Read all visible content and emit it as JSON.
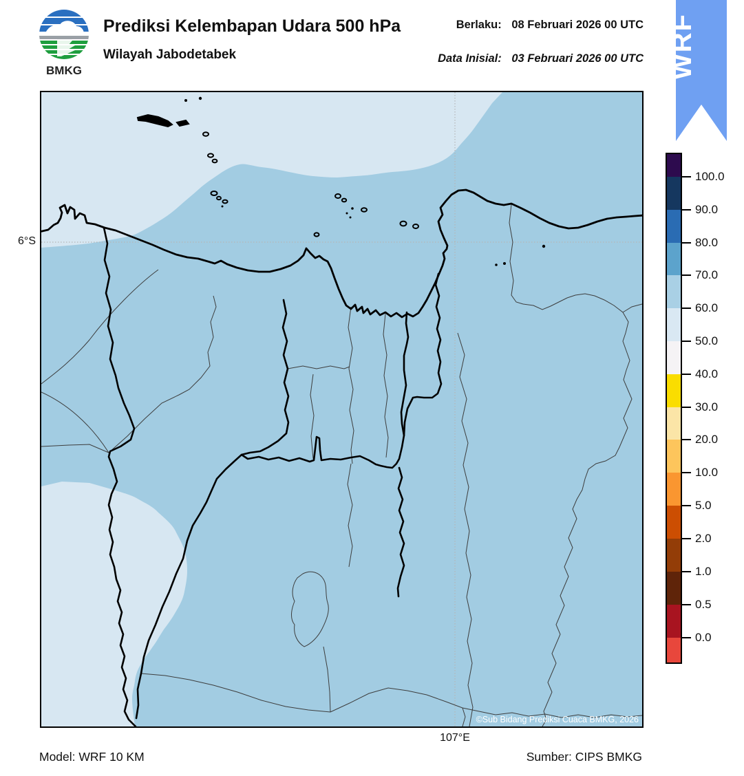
{
  "header": {
    "logo_text": "BMKG",
    "title": "Prediksi Kelembapan Udara 500 hPa",
    "subtitle": "Wilayah Jabodetabek",
    "valid_label": "Berlaku:",
    "valid_value": "08 Februari 2026 00 UTC",
    "initial_label": "Data Inisial:",
    "initial_value": "03 Februari 2026 00 UTC",
    "ribbon": {
      "label": "WRF",
      "color": "#6FA0F2"
    }
  },
  "map": {
    "lat_tick": "6°S",
    "lon_tick": "107°E",
    "copyright": "©Sub Bidang Prediksi Cuaca BMKG, 2026",
    "colors": {
      "humidity_60_70_fill": "#A2CCE2",
      "humidity_50_60_fill": "#D7E7F2",
      "coastline": "#000000",
      "district_border": "#3d3d3d",
      "gridline": "#b5b5b5"
    }
  },
  "colorbar": {
    "tick_labels": [
      "100.0",
      "90.0",
      "80.0",
      "70.0",
      "60.0",
      "50.0",
      "40.0",
      "30.0",
      "20.0",
      "10.0",
      "5.0",
      "2.0",
      "1.0",
      "0.5",
      "0.0"
    ],
    "segment_colors_top_to_bottom": [
      "#2D0B4E",
      "#15375F",
      "#2A6CB3",
      "#5CA3CC",
      "#A9D0E5",
      "#D9E8F3",
      "#F5F3F5",
      "#FADD00",
      "#FBE5A7",
      "#FDC55C",
      "#FA9630",
      "#CC4E02",
      "#933D07",
      "#5F2409",
      "#A81420",
      "#E8473C"
    ]
  },
  "footer": {
    "model_label": "Model: WRF 10 KM",
    "source_label": "Sumber: CIPS BMKG"
  }
}
